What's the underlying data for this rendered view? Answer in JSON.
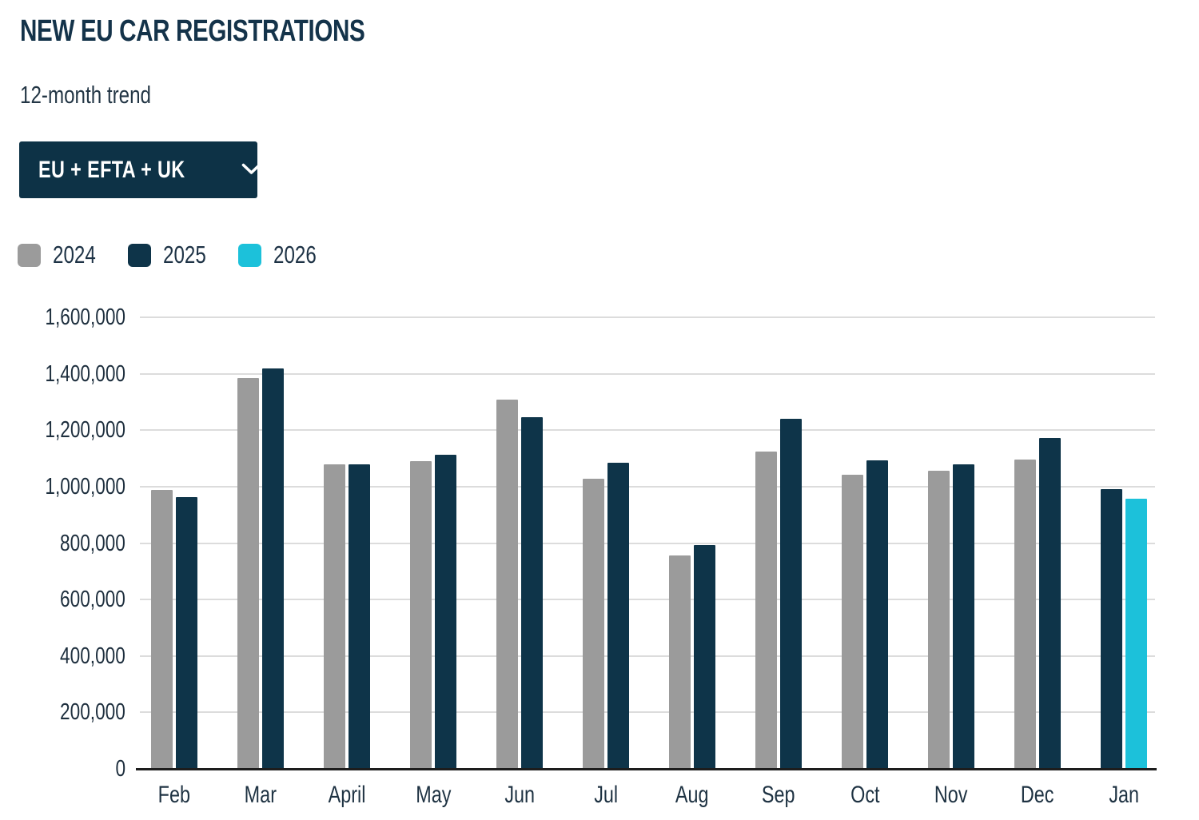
{
  "header": {
    "title": "NEW EU CAR REGISTRATIONS",
    "subtitle": "12-month trend"
  },
  "controls": {
    "region_dropdown": {
      "value": "EU + EFTA + UK",
      "icon": "chevron-down-icon"
    }
  },
  "colors": {
    "brand_navy": "#0d3246",
    "bar_gray": "#9b9b9b",
    "bar_navy": "#0e3449",
    "bar_cyan": "#1cc1da",
    "gridline": "#dcdcdc",
    "axis": "#1d1d1d",
    "text_dark": "#1d3245"
  },
  "chart_data": {
    "type": "bar",
    "title": "NEW EU CAR REGISTRATIONS",
    "subtitle": "12-month trend",
    "categories": [
      "Feb",
      "Mar",
      "April",
      "May",
      "Jun",
      "Jul",
      "Aug",
      "Sep",
      "Oct",
      "Nov",
      "Dec",
      "Jan"
    ],
    "series": [
      {
        "name": "2024",
        "color": "#9b9b9b",
        "values": [
          989000,
          1385000,
          1080000,
          1091000,
          1308000,
          1028000,
          757000,
          1123000,
          1041000,
          1056000,
          1096000,
          null
        ]
      },
      {
        "name": "2025",
        "color": "#0e3449",
        "values": [
          963000,
          1420000,
          1078000,
          1112000,
          1246000,
          1086000,
          792000,
          1240000,
          1094000,
          1079000,
          1173000,
          991000
        ]
      },
      {
        "name": "2026",
        "color": "#1cc1da",
        "values": [
          null,
          null,
          null,
          null,
          null,
          null,
          null,
          null,
          null,
          null,
          null,
          956000
        ]
      }
    ],
    "xlabel": "",
    "ylabel": "",
    "ylim": [
      0,
      1600000
    ],
    "ytick_step": 200000,
    "ytick_labels": [
      "0",
      "200,000",
      "400,000",
      "600,000",
      "800,000",
      "1,000,000",
      "1,200,000",
      "1,400,000",
      "1,600,000"
    ],
    "grid": "horizontal",
    "legend_position": "top-left"
  }
}
